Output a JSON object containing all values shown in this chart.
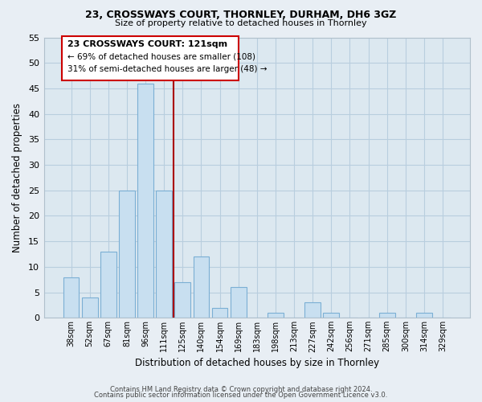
{
  "title1": "23, CROSSWAYS COURT, THORNLEY, DURHAM, DH6 3GZ",
  "title2": "Size of property relative to detached houses in Thornley",
  "xlabel": "Distribution of detached houses by size in Thornley",
  "ylabel": "Number of detached properties",
  "bar_labels": [
    "38sqm",
    "52sqm",
    "67sqm",
    "81sqm",
    "96sqm",
    "111sqm",
    "125sqm",
    "140sqm",
    "154sqm",
    "169sqm",
    "183sqm",
    "198sqm",
    "213sqm",
    "227sqm",
    "242sqm",
    "256sqm",
    "271sqm",
    "285sqm",
    "300sqm",
    "314sqm",
    "329sqm"
  ],
  "bar_values": [
    8,
    4,
    13,
    25,
    46,
    25,
    7,
    12,
    2,
    6,
    0,
    1,
    0,
    3,
    1,
    0,
    0,
    1,
    0,
    1,
    0
  ],
  "bar_color": "#c8dff0",
  "bar_edge_color": "#7bafd4",
  "vline_color": "#aa0000",
  "vline_index": 5,
  "annotation_line1": "23 CROSSWAYS COURT: 121sqm",
  "annotation_line2": "← 69% of detached houses are smaller (108)",
  "annotation_line3": "31% of semi-detached houses are larger (48) →",
  "ylim": [
    0,
    55
  ],
  "yticks": [
    0,
    5,
    10,
    15,
    20,
    25,
    30,
    35,
    40,
    45,
    50,
    55
  ],
  "footer1": "Contains HM Land Registry data © Crown copyright and database right 2024.",
  "footer2": "Contains public sector information licensed under the Open Government Licence v3.0.",
  "bg_color": "#e8eef4",
  "plot_bg_color": "#dce8f0",
  "grid_color": "#b8cede",
  "spine_color": "#b0c0cc"
}
